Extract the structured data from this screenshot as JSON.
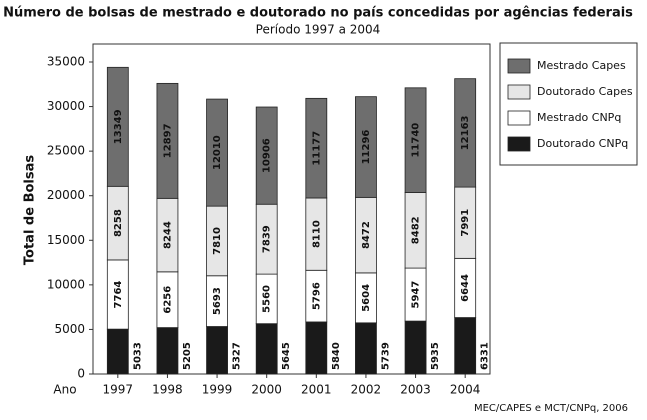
{
  "chart_data": {
    "type": "stacked_bar",
    "title": "Número de bolsas de mestrado e doutorado no país concedidas  por agências federais",
    "subtitle": "Período 1997 a 2004",
    "y_label": "Total de Bolsas",
    "x_label": "Ano",
    "source": "MEC/CAPES e MCT/CNPq, 2006",
    "categories": [
      "1997",
      "1998",
      "1999",
      "2000",
      "2001",
      "2002",
      "2003",
      "2004"
    ],
    "series": [
      {
        "name": "Doutorado CNPq",
        "color": "#1a1a1a",
        "values": [
          5033,
          5205,
          5327,
          5645,
          5840,
          5739,
          5935,
          6331
        ]
      },
      {
        "name": "Mestrado CNPq",
        "color": "#ffffff",
        "values": [
          7764,
          6256,
          5693,
          5560,
          5796,
          5604,
          5947,
          6644
        ]
      },
      {
        "name": "Doutorado Capes",
        "color": "#e6e6e6",
        "values": [
          8258,
          8244,
          7810,
          7839,
          8110,
          8472,
          8482,
          7991
        ]
      },
      {
        "name": "Mestrado Capes",
        "color": "#6e6e6e",
        "values": [
          13349,
          12897,
          12010,
          10906,
          11177,
          11296,
          11740,
          12163
        ]
      }
    ],
    "ylim": [
      0,
      35000
    ],
    "yticks": [
      0,
      5000,
      10000,
      15000,
      20000,
      25000,
      30000,
      35000
    ]
  }
}
